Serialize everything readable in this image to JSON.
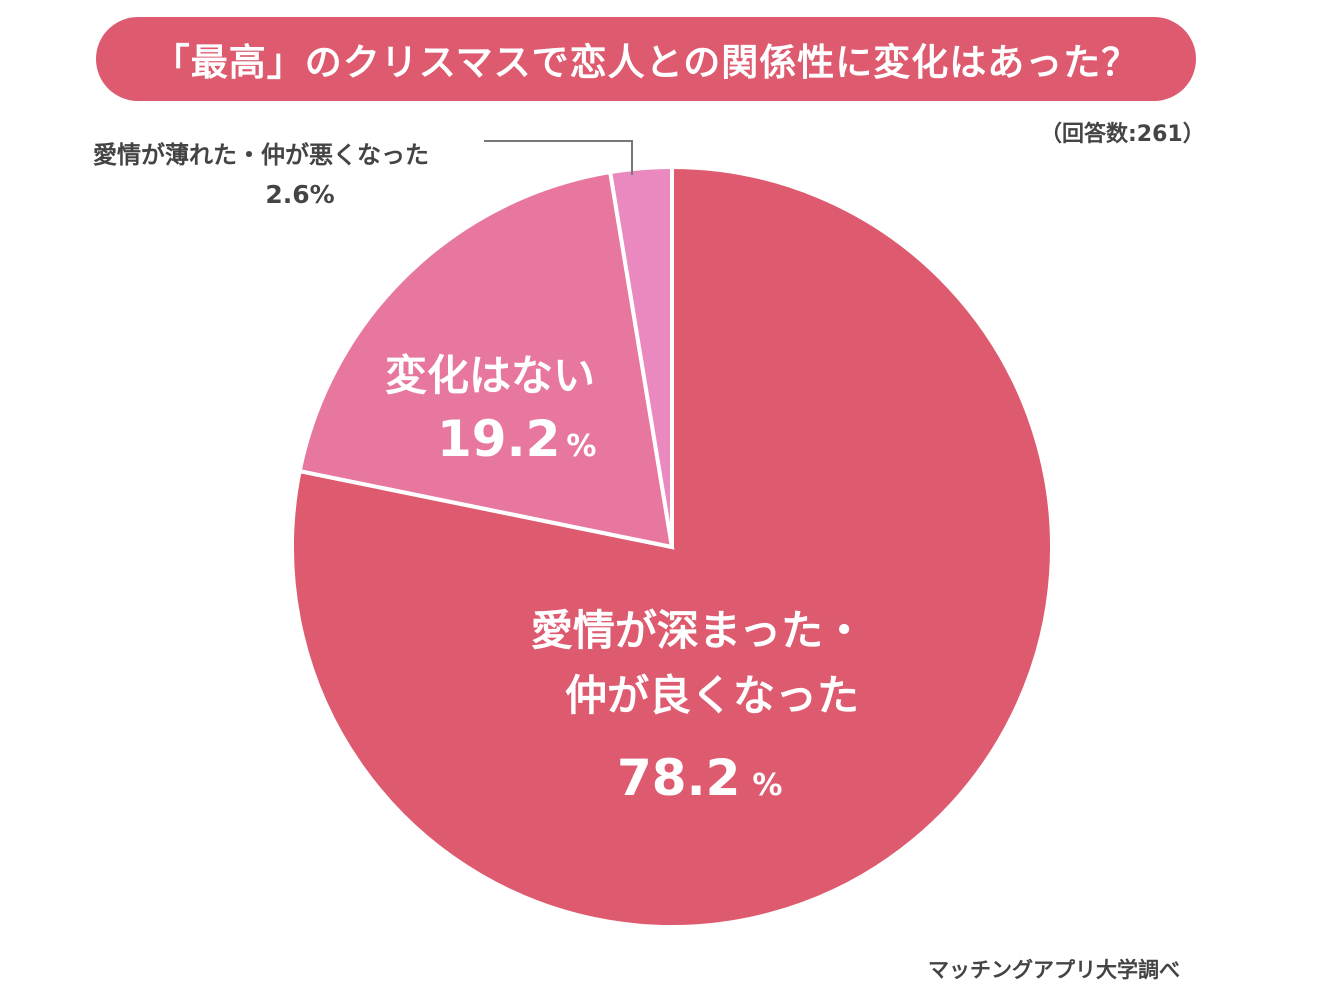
{
  "title": "「最高」のクリスマスで恋人との関係性に変化はあった？",
  "respondents": "（回答数:261）",
  "source": "マッチングアプリ大学調べ",
  "colors": {
    "banner": "#dd5a6f"
  },
  "chart_data": {
    "type": "pie",
    "title": "「最高」のクリスマスで恋人との関係性に変化はあった？",
    "slices": [
      {
        "label_lines": [
          "愛情が深まった・",
          "仲が良くなった"
        ],
        "value": 78.2,
        "value_text": "78.2",
        "unit": "%",
        "color": "#dd5a6f"
      },
      {
        "label_lines": [
          "変化はない"
        ],
        "value": 19.2,
        "value_text": "19.2",
        "unit": "%",
        "color": "#e7779f"
      },
      {
        "label_lines": [
          "愛情が薄れた・仲が悪くなった"
        ],
        "value": 2.6,
        "value_text": "2.6",
        "unit": "%",
        "color": "#ea88c0"
      }
    ]
  }
}
